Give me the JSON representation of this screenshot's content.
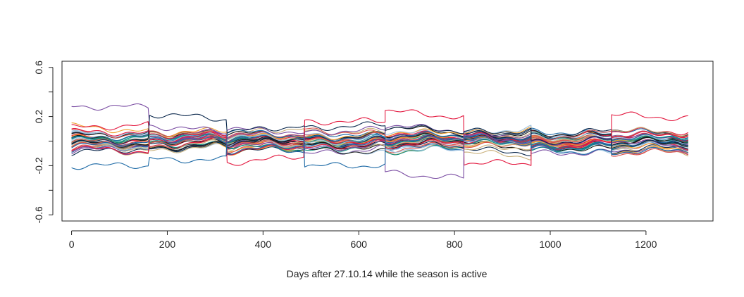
{
  "chart_data": {
    "type": "line",
    "title": "",
    "xlabel": "Days after 27.10.14 while the season is active",
    "ylabel": "",
    "xlim": [
      -20,
      1340
    ],
    "ylim": [
      -0.65,
      0.65
    ],
    "x_ticks": [
      0,
      200,
      400,
      600,
      800,
      1000,
      1200
    ],
    "x_tick_labels": [
      "0",
      "200",
      "400",
      "600",
      "800",
      "1000",
      "1200"
    ],
    "y_ticks": [
      0.6,
      0.4,
      0.2,
      0.0,
      -0.2,
      -0.4,
      -0.6
    ],
    "y_tick_labels": [
      "0.6",
      "",
      "0.2",
      "",
      "-0.2",
      "",
      "-0.6"
    ],
    "grid": false,
    "legend": "none",
    "season_breaks": [
      163,
      325,
      487,
      655,
      820,
      960,
      1128
    ],
    "x_end": 1290,
    "series_count": 42,
    "colors": [
      "#e3173e",
      "#1d6aa6",
      "#0d2a4e",
      "#f0a030",
      "#7b4ea3",
      "#0f8f7e",
      "#c9b07a",
      "#9ec2e0",
      "#1a1a1a",
      "#d9534f"
    ],
    "highlight_series": [
      {
        "color": "#e3173e",
        "segment_levels": [
          0.12,
          0.05,
          -0.15,
          0.16,
          0.22,
          -0.18,
          -0.04,
          0.2,
          0.18
        ]
      },
      {
        "color": "#7b4ea3",
        "segment_levels": [
          0.28,
          0.1,
          0.05,
          -0.05,
          -0.28,
          0.02,
          0.0,
          -0.02,
          0.08
        ]
      },
      {
        "color": "#1d6aa6",
        "segment_levels": [
          -0.2,
          -0.15,
          0.06,
          -0.2,
          0.05,
          0.0,
          -0.05,
          -0.08,
          0.03
        ]
      },
      {
        "color": "#0d2a4e",
        "segment_levels": [
          0.0,
          0.2,
          0.1,
          0.12,
          0.1,
          0.08,
          0.0,
          -0.02,
          0.06
        ]
      }
    ]
  }
}
